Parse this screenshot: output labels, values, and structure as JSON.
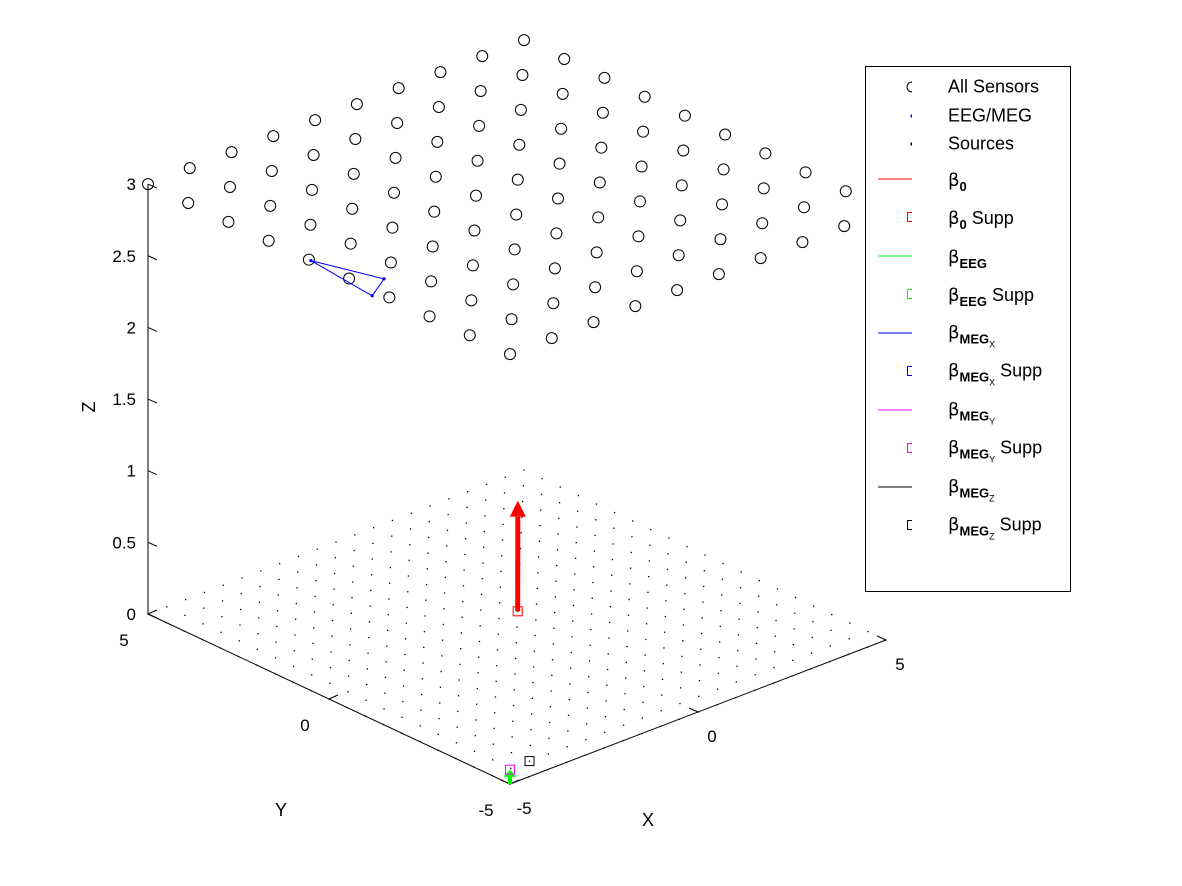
{
  "chart_data": {
    "type": "scatter",
    "projection": "3d",
    "xlabel": "X",
    "ylabel": "Y",
    "zlabel": "Z",
    "xlim": [
      -5,
      5
    ],
    "ylim": [
      -5,
      5
    ],
    "zlim": [
      0,
      3
    ],
    "x_ticks": [
      "-5",
      "0",
      "5"
    ],
    "y_ticks": [
      "-5",
      "0",
      "5"
    ],
    "z_ticks": [
      "0",
      "0.5",
      "1",
      "1.5",
      "2",
      "2.5",
      "3"
    ],
    "source_grid": {
      "x_range": [
        -5,
        5
      ],
      "y_range": [
        -5,
        5
      ],
      "z": 0,
      "n_per_side": 21,
      "color": "#000000"
    },
    "sensor_grid": {
      "x_range": [
        -5,
        5
      ],
      "y_range": [
        -5,
        5
      ],
      "z": 3,
      "n_per_side": 10,
      "color": "#000000"
    },
    "eeg_meg_triangle": {
      "points": [
        [
          -5,
          0.5,
          3
        ],
        [
          -4.5,
          -1.0,
          3
        ],
        [
          -5.2,
          -1.4,
          3
        ]
      ],
      "color": "#0000ff"
    },
    "beta0_arrow": {
      "from": [
        0.5,
        0.5,
        0
      ],
      "to": [
        0.6,
        0.6,
        0.75
      ],
      "color": "#ff0000"
    },
    "beta0_supp": {
      "at": [
        0.5,
        0.5,
        0
      ],
      "color": "#ff0000"
    },
    "betaEEG_arrow": {
      "from": [
        -5,
        -5,
        0
      ],
      "to": [
        -5,
        -5,
        0.1
      ],
      "color": "#00ff00"
    },
    "betaMEGY_supp": {
      "at": [
        -5,
        -5,
        0.1
      ],
      "color": "#ff00ff"
    },
    "betaMEGZ_supp": {
      "at": [
        -4,
        -4.5,
        0
      ],
      "color": "#000000"
    }
  },
  "legend": {
    "items": [
      {
        "label": "All Sensors",
        "color": "#000000",
        "marker": "circle"
      },
      {
        "label": "EEG/MEG",
        "color": "#0000ff",
        "marker": "dot"
      },
      {
        "label": "Sources",
        "color": "#000000",
        "marker": "dot"
      },
      {
        "beta": "β",
        "sub": "0",
        "subsub": "",
        "suffix": "",
        "color": "#ff0000",
        "marker": "line"
      },
      {
        "beta": "β",
        "sub": "0",
        "subsub": "",
        "suffix": " Supp",
        "color": "#ff0000",
        "marker": "square"
      },
      {
        "beta": "β",
        "sub": "EEG",
        "subsub": "",
        "suffix": "",
        "color": "#00ff00",
        "marker": "line"
      },
      {
        "beta": "β",
        "sub": "EEG",
        "subsub": "",
        "suffix": " Supp",
        "color": "#00ff00",
        "marker": "square"
      },
      {
        "beta": "β",
        "sub": "MEG",
        "subsub": "X",
        "suffix": "",
        "color": "#0000ff",
        "marker": "line"
      },
      {
        "beta": "β",
        "sub": "MEG",
        "subsub": "X",
        "suffix": " Supp",
        "color": "#0000ff",
        "marker": "square"
      },
      {
        "beta": "β",
        "sub": "MEG",
        "subsub": "Y",
        "suffix": "",
        "color": "#ff00ff",
        "marker": "line"
      },
      {
        "beta": "β",
        "sub": "MEG",
        "subsub": "Y",
        "suffix": " Supp",
        "color": "#ff00ff",
        "marker": "square"
      },
      {
        "beta": "β",
        "sub": "MEG",
        "subsub": "Z",
        "suffix": "",
        "color": "#000000",
        "marker": "line"
      },
      {
        "beta": "β",
        "sub": "MEG",
        "subsub": "Z",
        "suffix": " Supp",
        "color": "#000000",
        "marker": "square"
      }
    ]
  }
}
